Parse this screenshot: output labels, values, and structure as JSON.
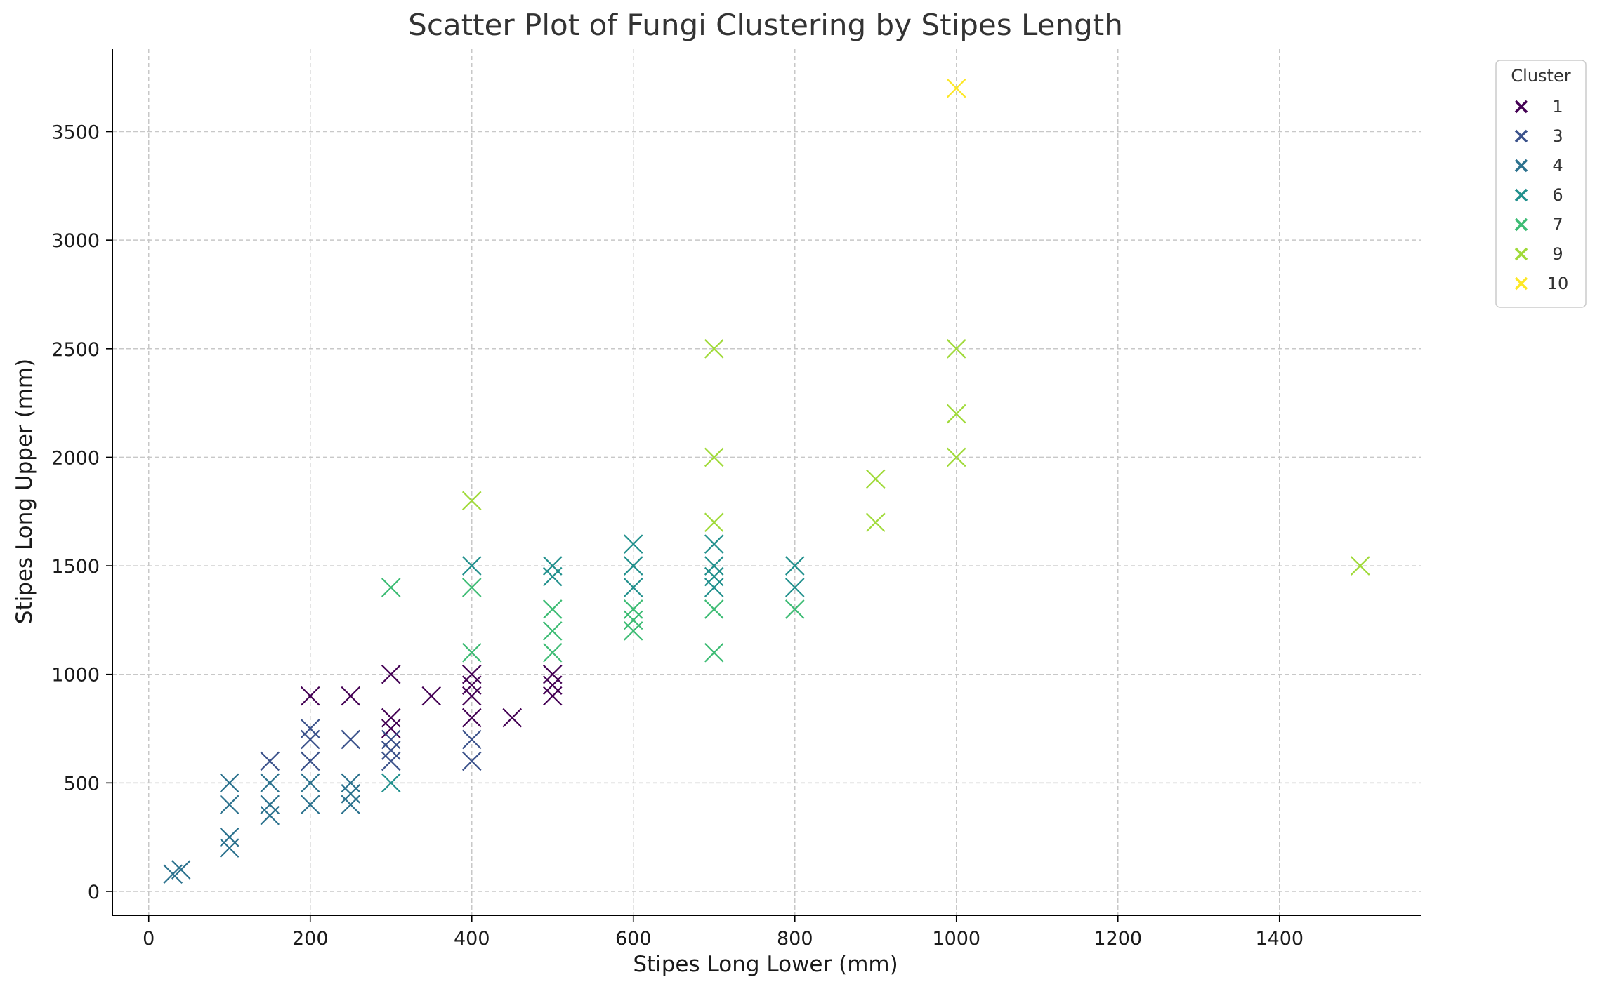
{
  "chart_data": {
    "type": "scatter",
    "title": "Scatter Plot of Fungi Clustering by Stipes Length",
    "xlabel": "Stipes Long Lower (mm)",
    "ylabel": "Stipes Long Upper (mm)",
    "xlim": [
      -45,
      1575
    ],
    "ylim": [
      -110,
      3880
    ],
    "xticks": [
      0,
      200,
      400,
      600,
      800,
      1000,
      1200,
      1400
    ],
    "yticks": [
      0,
      500,
      1000,
      1500,
      2000,
      2500,
      3000,
      3500
    ],
    "grid": true,
    "grid_style": "dashed",
    "marker": "x",
    "legend": {
      "title": "Cluster",
      "position": "outside-top-right"
    },
    "series": [
      {
        "name": "1",
        "color": "#440154",
        "points": [
          [
            200,
            900
          ],
          [
            250,
            900
          ],
          [
            300,
            1000
          ],
          [
            300,
            800
          ],
          [
            300,
            750
          ],
          [
            350,
            900
          ],
          [
            400,
            1000
          ],
          [
            400,
            950
          ],
          [
            400,
            900
          ],
          [
            400,
            800
          ],
          [
            450,
            800
          ],
          [
            500,
            1000
          ],
          [
            500,
            950
          ],
          [
            500,
            900
          ]
        ]
      },
      {
        "name": "3",
        "color": "#3b528b",
        "points": [
          [
            150,
            600
          ],
          [
            200,
            750
          ],
          [
            200,
            700
          ],
          [
            200,
            600
          ],
          [
            250,
            700
          ],
          [
            300,
            700
          ],
          [
            300,
            650
          ],
          [
            300,
            600
          ],
          [
            400,
            700
          ],
          [
            400,
            600
          ]
        ]
      },
      {
        "name": "4",
        "color": "#2c728e",
        "points": [
          [
            30,
            80
          ],
          [
            40,
            100
          ],
          [
            100,
            250
          ],
          [
            100,
            200
          ],
          [
            100,
            500
          ],
          [
            100,
            400
          ],
          [
            150,
            400
          ],
          [
            150,
            350
          ],
          [
            150,
            500
          ],
          [
            200,
            500
          ],
          [
            200,
            400
          ],
          [
            250,
            500
          ],
          [
            250,
            450
          ],
          [
            250,
            400
          ]
        ]
      },
      {
        "name": "6",
        "color": "#21908d",
        "points": [
          [
            300,
            500
          ],
          [
            400,
            1500
          ],
          [
            500,
            1500
          ],
          [
            500,
            1450
          ],
          [
            600,
            1600
          ],
          [
            600,
            1500
          ],
          [
            600,
            1400
          ],
          [
            700,
            1600
          ],
          [
            700,
            1500
          ],
          [
            700,
            1450
          ],
          [
            700,
            1400
          ],
          [
            800,
            1500
          ],
          [
            800,
            1400
          ]
        ]
      },
      {
        "name": "7",
        "color": "#3dbc74",
        "points": [
          [
            300,
            1400
          ],
          [
            400,
            1400
          ],
          [
            400,
            1100
          ],
          [
            500,
            1300
          ],
          [
            500,
            1200
          ],
          [
            500,
            1100
          ],
          [
            600,
            1300
          ],
          [
            600,
            1250
          ],
          [
            600,
            1200
          ],
          [
            700,
            1300
          ],
          [
            700,
            1100
          ],
          [
            800,
            1300
          ]
        ]
      },
      {
        "name": "9",
        "color": "#a0da39",
        "points": [
          [
            400,
            1800
          ],
          [
            700,
            2500
          ],
          [
            700,
            2000
          ],
          [
            700,
            1700
          ],
          [
            900,
            1900
          ],
          [
            900,
            1700
          ],
          [
            1000,
            2500
          ],
          [
            1000,
            2200
          ],
          [
            1000,
            2000
          ],
          [
            1500,
            1500
          ]
        ]
      },
      {
        "name": "10",
        "color": "#fde725",
        "points": [
          [
            1000,
            3700
          ]
        ]
      }
    ]
  }
}
